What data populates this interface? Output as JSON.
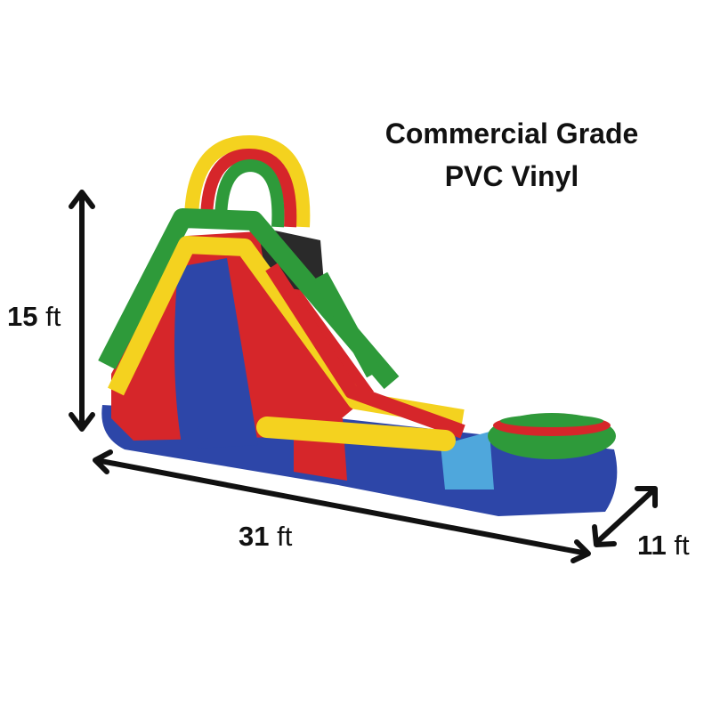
{
  "caption": {
    "line1": "Commercial Grade",
    "line2": "PVC Vinyl"
  },
  "dimensions": [
    {
      "value": "15",
      "unit": "ft"
    },
    {
      "value": "31",
      "unit": "ft"
    },
    {
      "value": "11",
      "unit": "ft"
    }
  ]
}
